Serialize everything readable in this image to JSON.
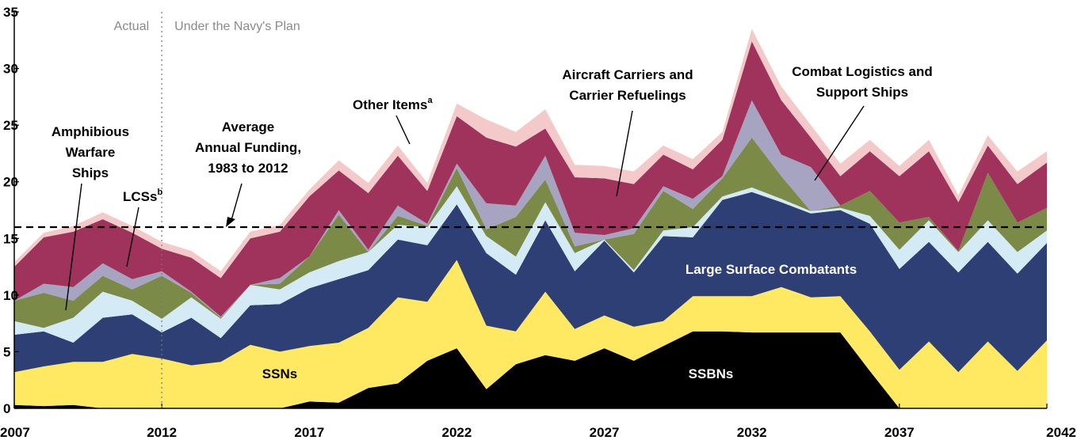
{
  "chart_data": {
    "type": "area",
    "stacked": true,
    "title": "",
    "xlabel": "",
    "ylabel": "",
    "xlim": [
      2007,
      2042
    ],
    "ylim": [
      0,
      35
    ],
    "x_ticks": [
      2007,
      2012,
      2017,
      2022,
      2027,
      2032,
      2037,
      2042
    ],
    "y_ticks": [
      0,
      5,
      10,
      15,
      20,
      25,
      30,
      35
    ],
    "grid": false,
    "legend": "none",
    "x": [
      2007,
      2008,
      2009,
      2010,
      2011,
      2012,
      2013,
      2014,
      2015,
      2016,
      2017,
      2018,
      2019,
      2020,
      2021,
      2022,
      2023,
      2024,
      2025,
      2026,
      2027,
      2028,
      2029,
      2030,
      2031,
      2032,
      2033,
      2034,
      2035,
      2036,
      2037,
      2038,
      2039,
      2040,
      2041,
      2042
    ],
    "series": [
      {
        "key": "ssbns",
        "color": "#000000",
        "values": [
          0.3,
          0.2,
          0.3,
          0,
          0,
          0,
          0,
          0,
          0,
          0,
          0.6,
          0.5,
          1.8,
          2.2,
          4.2,
          5.3,
          1.7,
          3.9,
          4.7,
          4.2,
          5.3,
          4.2,
          5.5,
          6.8,
          6.8,
          6.7,
          6.7,
          6.7,
          6.7,
          3.3,
          0,
          0,
          0,
          0,
          0,
          0
        ]
      },
      {
        "key": "ssns",
        "color": "#ffe963",
        "values": [
          2.9,
          3.5,
          3.8,
          4.1,
          4.8,
          4.4,
          3.8,
          4.1,
          5.6,
          5,
          4.9,
          5.3,
          5.3,
          7.6,
          5.2,
          7.8,
          5.6,
          2.9,
          5.6,
          2.8,
          2.9,
          3.0,
          2.2,
          3.1,
          3.1,
          3.2,
          4.0,
          3.1,
          3.2,
          3.5,
          3.4,
          5.9,
          3.2,
          5.9,
          3.3,
          6.0
        ]
      },
      {
        "key": "large-surface-combatants",
        "color": "#2e3f76",
        "values": [
          3.3,
          3.1,
          1.7,
          3.9,
          3.5,
          2.3,
          4.2,
          2.1,
          3.5,
          4.2,
          5.1,
          5.6,
          5.1,
          5.1,
          5.0,
          4.9,
          6.4,
          5.0,
          6.3,
          5.1,
          6.6,
          4.8,
          7.5,
          5.2,
          8.5,
          9.2,
          7.5,
          7.4,
          7.6,
          9.5,
          8.9,
          8.8,
          8.8,
          8.8,
          8.6,
          8.6
        ]
      },
      {
        "key": "lcss",
        "color": "#d4ebf5",
        "values": [
          1.2,
          0.3,
          2.2,
          2.3,
          1.2,
          1.2,
          1.8,
          1.7,
          1.8,
          1.3,
          1.4,
          1.6,
          1.6,
          1.3,
          1.6,
          1.6,
          1.5,
          1.6,
          1.6,
          1.6,
          0.1,
          0.2,
          0.5,
          0.9,
          0.3,
          0.4,
          0.3,
          0.2,
          0.2,
          0.7,
          1.7,
          1.9,
          1.8,
          1.9,
          1.9,
          1.1
        ]
      },
      {
        "key": "amphibious-warfare-ships",
        "color": "#7b8a47",
        "values": [
          1.8,
          3.1,
          1.5,
          1.4,
          1.0,
          3.8,
          0.4,
          0.1,
          0,
          0.5,
          1.4,
          4.1,
          0,
          0.8,
          0.1,
          1.6,
          0.6,
          3.5,
          2.0,
          0.6,
          0,
          3.2,
          3.5,
          1.6,
          1.6,
          4.4,
          2.0,
          0,
          0.2,
          2.2,
          2.4,
          0.3,
          0.1,
          4.2,
          2.6,
          2.0
        ]
      },
      {
        "key": "combat-logistics-and-support-ships",
        "color": "#a6a4c0",
        "values": [
          0,
          0.8,
          1.2,
          1.1,
          0.9,
          0.4,
          0.1,
          0.1,
          0,
          0.5,
          0,
          0.4,
          0.2,
          0.9,
          0.2,
          0.4,
          2.3,
          1.0,
          2.1,
          1.2,
          0.4,
          0.5,
          0.4,
          0.9,
          0.2,
          3.3,
          1.9,
          3.9,
          0,
          0,
          0,
          0,
          0,
          0,
          0,
          0
        ]
      },
      {
        "key": "aircraft-carriers-and-carrier-refuelings",
        "color": "#a0335c",
        "values": [
          3.0,
          4.1,
          4.9,
          3.9,
          4.1,
          2.0,
          3.0,
          3.4,
          4.1,
          4.1,
          5.3,
          3.5,
          5.0,
          4.4,
          2.9,
          4.2,
          5.8,
          5.2,
          2.4,
          4.9,
          5.0,
          3.9,
          2.8,
          2.6,
          3.2,
          5.2,
          4.8,
          2.6,
          2.6,
          3.5,
          4.1,
          5.8,
          4.3,
          2.4,
          3.4,
          4.0
        ]
      },
      {
        "key": "other-items",
        "color": "#f4c9ca",
        "values": [
          0.4,
          0.4,
          0.5,
          0.6,
          0.6,
          0.6,
          0.6,
          0.6,
          0.6,
          0.6,
          0.6,
          0.9,
          0.9,
          0.9,
          0.7,
          1.1,
          1.6,
          1.3,
          1.7,
          1.1,
          1.1,
          1.1,
          0.8,
          0.9,
          0.7,
          1.1,
          1.2,
          1.1,
          1.1,
          1.0,
          0.9,
          1.0,
          0.6,
          0.9,
          1.1,
          1.0
        ]
      }
    ],
    "reference_line": {
      "value": 16,
      "label": "Average Annual Funding, 1983 to 2012"
    },
    "divider": {
      "x": 2012,
      "left_label": "Actual",
      "right_label": "Under the Navy's Plan"
    },
    "annotations": {
      "amphibious": [
        "Amphibious",
        "Warfare",
        "Ships"
      ],
      "lcss": "LCSs",
      "lcss_sup": "b",
      "average": [
        "Average",
        "Annual Funding,",
        "1983 to 2012"
      ],
      "other": "Other Items",
      "other_sup": "a",
      "carriers": [
        "Aircraft Carriers and",
        "Carrier Refuelings"
      ],
      "logistics": [
        "Combat Logistics and",
        "Support Ships"
      ],
      "large_surface": "Large Surface Combatants",
      "ssns": "SSNs",
      "ssbns": "SSBNs"
    }
  }
}
